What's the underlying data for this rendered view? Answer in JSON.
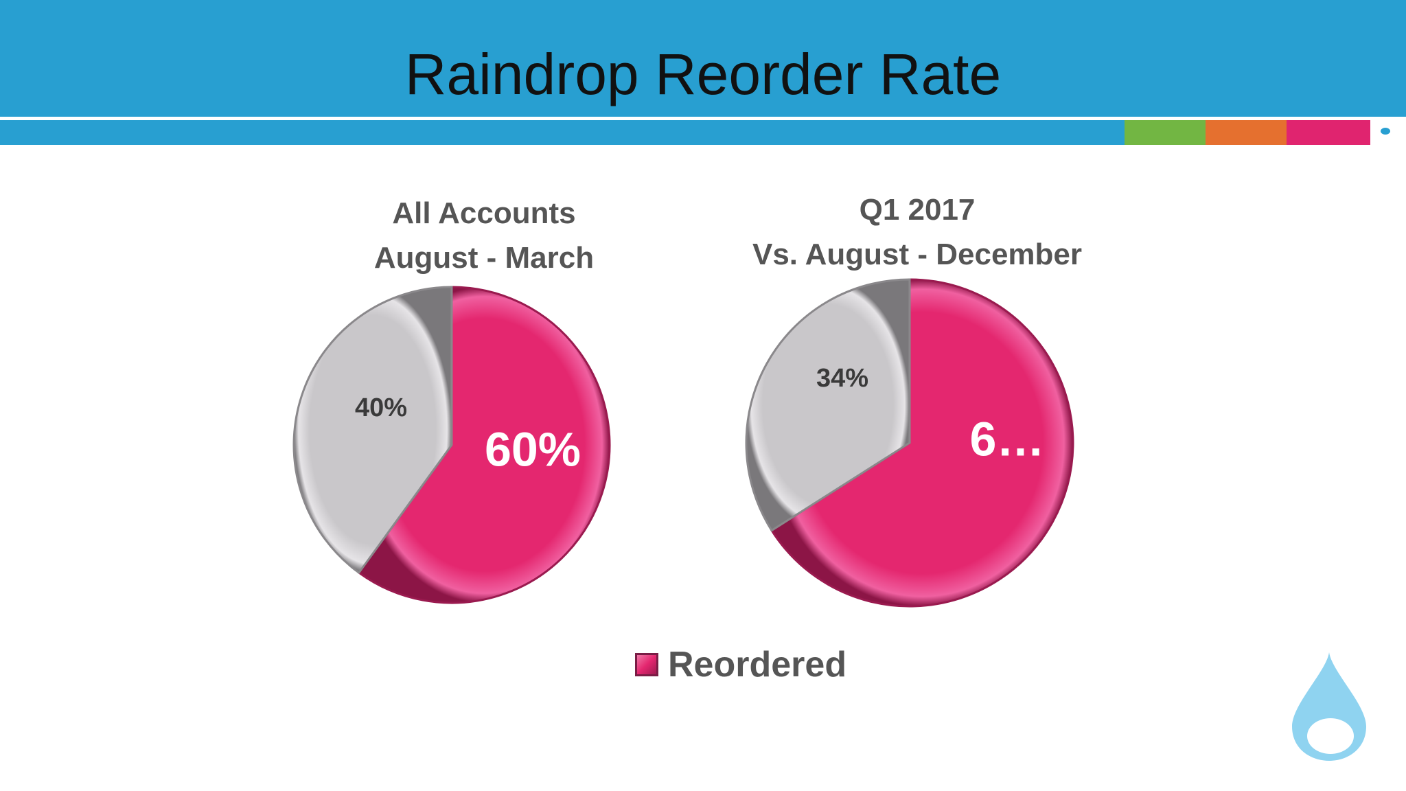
{
  "slide": {
    "title": "Raindrop Reorder Rate"
  },
  "colors": {
    "header_blue": "#289fd1",
    "accent_green": "#72b643",
    "accent_orange": "#e5702f",
    "accent_pink": "#e0246f",
    "reordered": "#e4276f",
    "not_reordered": "#c9c7ca",
    "logo_blue": "#8fd3f0"
  },
  "logo": {
    "icon": "raindrop-icon"
  },
  "legend": {
    "label": "Reordered"
  },
  "chart_data": [
    {
      "type": "pie",
      "title": [
        "All Accounts",
        "August - March"
      ],
      "slices": [
        {
          "name": "Reordered",
          "value": 60,
          "label": "60%"
        },
        {
          "name": "",
          "value": 40,
          "label": "40%"
        }
      ]
    },
    {
      "type": "pie",
      "title": [
        "Q1 2017",
        "Vs. August - December"
      ],
      "slices": [
        {
          "name": "Reordered",
          "value": 66,
          "label": "6…"
        },
        {
          "name": "",
          "value": 34,
          "label": "34%"
        }
      ]
    }
  ]
}
